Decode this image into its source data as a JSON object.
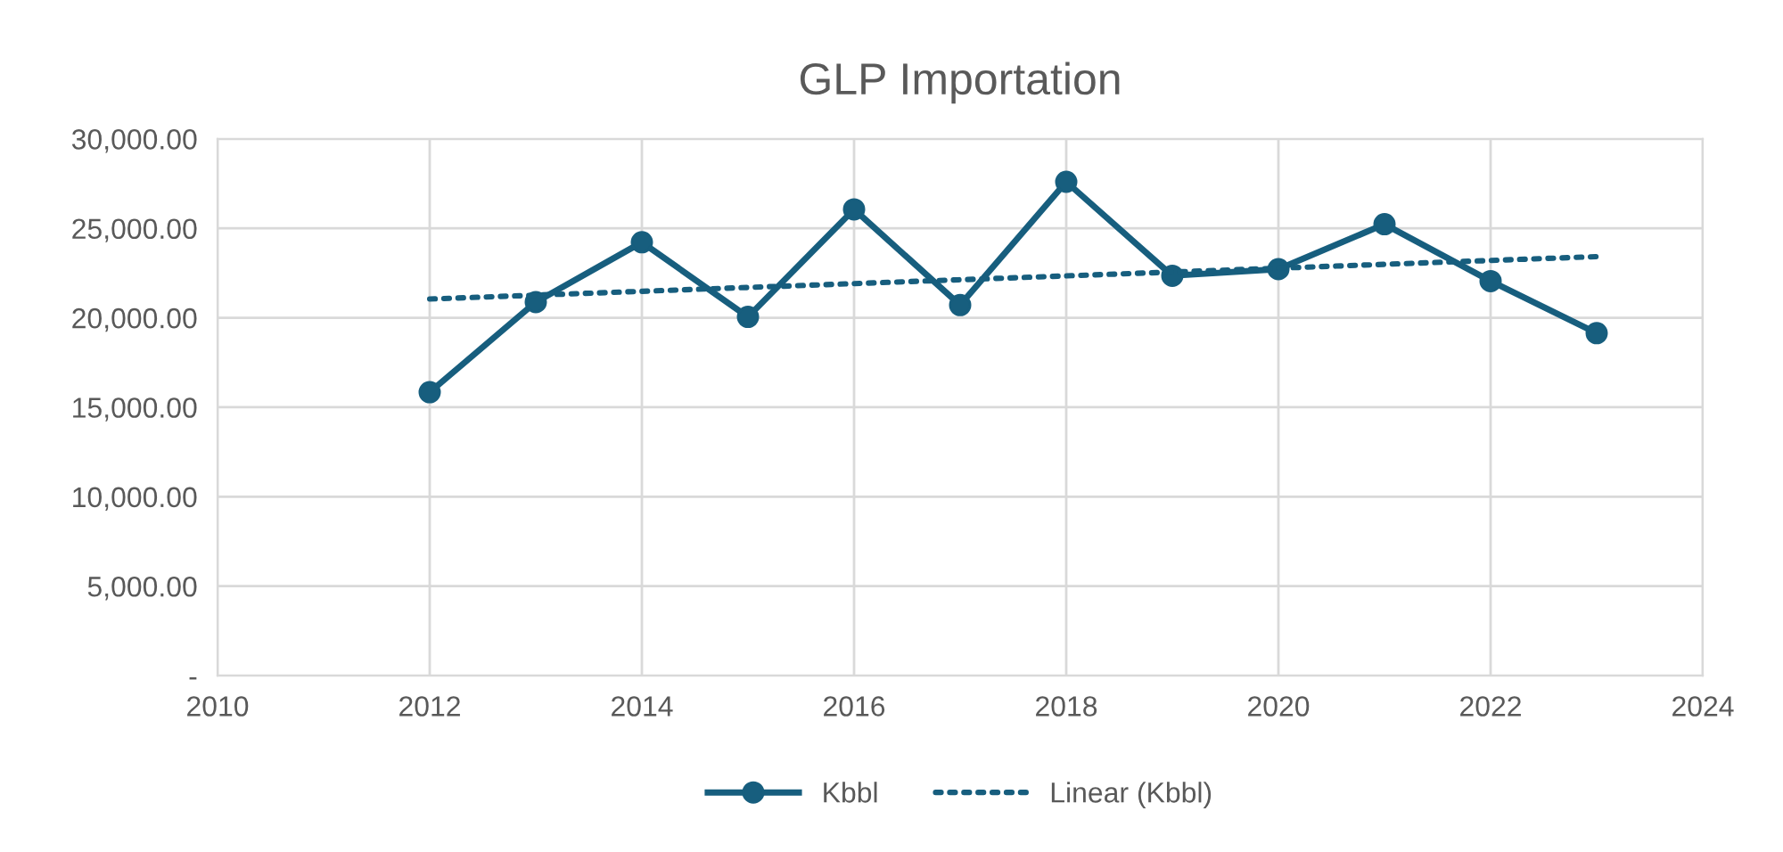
{
  "chart_data": {
    "type": "line",
    "title": "GLP Importation",
    "series": [
      {
        "name": "Kbbl",
        "color": "#175e7e",
        "marker": "circle",
        "line_style": "solid",
        "x": [
          2012,
          2013,
          2014,
          2015,
          2016,
          2017,
          2018,
          2019,
          2020,
          2021,
          2022,
          2023
        ],
        "values": [
          15840,
          20880,
          24220,
          20050,
          26060,
          20710,
          27600,
          22350,
          22720,
          25230,
          22050,
          19140
        ]
      },
      {
        "name": "Linear (Kbbl)",
        "color": "#175e7e",
        "marker": "none",
        "line_style": "dotted",
        "x": [
          2012,
          2023
        ],
        "values": [
          21050,
          23420
        ]
      }
    ],
    "xlim": [
      2010,
      2024
    ],
    "xticks": [
      2010,
      2012,
      2014,
      2016,
      2018,
      2020,
      2022,
      2024
    ],
    "ylim": [
      0,
      30000
    ],
    "yticks": [
      {
        "value": 0,
        "label": "-"
      },
      {
        "value": 5000,
        "label": "5,000.00"
      },
      {
        "value": 10000,
        "label": "10,000.00"
      },
      {
        "value": 15000,
        "label": "15,000.00"
      },
      {
        "value": 20000,
        "label": "20,000.00"
      },
      {
        "value": 25000,
        "label": "25,000.00"
      },
      {
        "value": 30000,
        "label": "30,000.00"
      }
    ],
    "grid": true,
    "legend": "bottom"
  }
}
